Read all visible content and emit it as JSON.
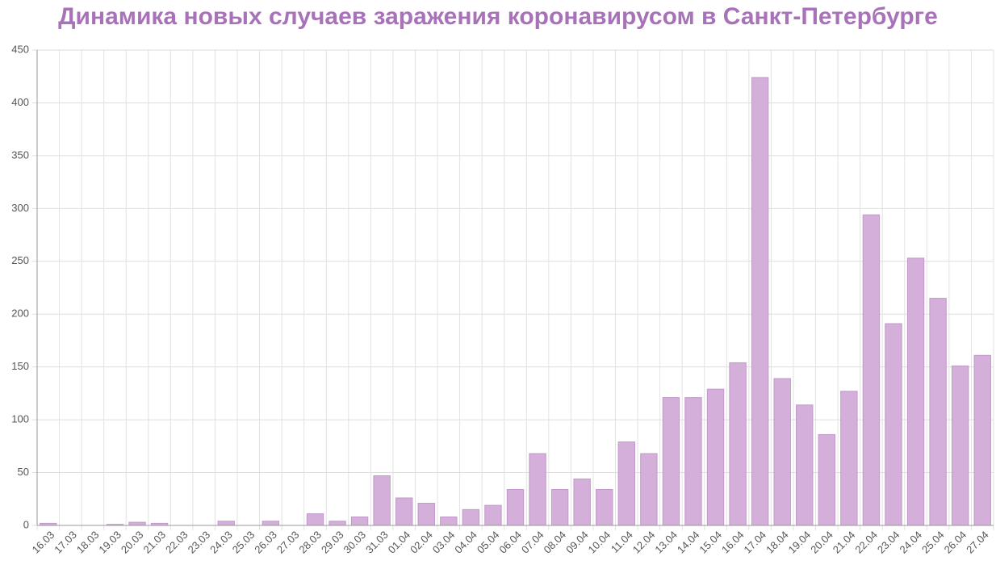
{
  "chart_data": {
    "type": "bar",
    "title": "Динамика новых случаев заражения коронавирусом в Санкт-Петербурге",
    "categories": [
      "16.03",
      "17.03",
      "18.03",
      "19.03",
      "20.03",
      "21.03",
      "22.03",
      "23.03",
      "24.03",
      "25.03",
      "26.03",
      "27.03",
      "28.03",
      "29.03",
      "30.03",
      "31.03",
      "01.04",
      "02.04",
      "03.04",
      "04.04",
      "05.04",
      "06.04",
      "07.04",
      "08.04",
      "09.04",
      "10.04",
      "11.04",
      "12.04",
      "13.04",
      "14.04",
      "15.04",
      "16.04",
      "17.04",
      "18.04",
      "19.04",
      "20.04",
      "21.04",
      "22.04",
      "23.04",
      "24.04",
      "25.04",
      "26.04",
      "27.04"
    ],
    "values": [
      2,
      0,
      0,
      1,
      3,
      2,
      0,
      0,
      4,
      0,
      4,
      0,
      11,
      4,
      8,
      47,
      26,
      21,
      8,
      15,
      19,
      34,
      68,
      34,
      44,
      34,
      79,
      68,
      121,
      121,
      129,
      154,
      424,
      139,
      114,
      86,
      127,
      294,
      191,
      253,
      215,
      151,
      161
    ],
    "color": "#d3afd9",
    "ylim": [
      0,
      450
    ],
    "yticks": [
      0,
      50,
      100,
      150,
      200,
      250,
      300,
      350,
      400,
      450
    ],
    "grid": true
  }
}
